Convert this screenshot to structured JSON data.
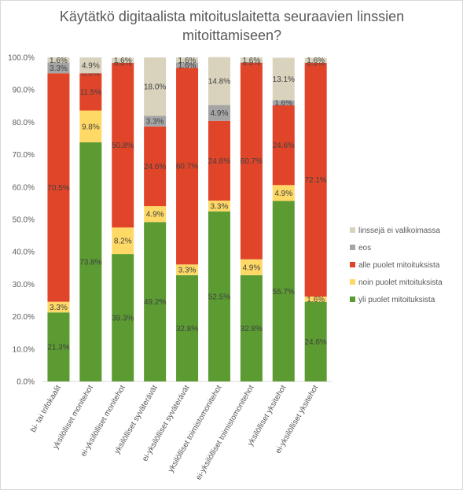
{
  "chart_data": {
    "type": "bar",
    "stacked": true,
    "title_lines": [
      "Käytätkö digitaalista mitoituslaitetta  seuraavien linssien",
      "mitoittamiseen?"
    ],
    "categories": [
      "bi- tai trifokaalit",
      "yksilölliset monitehot",
      "ei-yksilölliset monitehot",
      "yksilölliset syväterävät",
      "ei-yksilölliset syväterävät",
      "yksilölliset toimistomonitehot",
      "ei-yksilölliset toimistomonitehot",
      "yksilölliset yksitehot",
      "ei-yksilölliset yksitehot"
    ],
    "series": [
      {
        "name": "yli puolet mitoituksista",
        "color": "#5b9b32",
        "values": [
          21.3,
          73.8,
          39.3,
          49.2,
          32.8,
          52.5,
          32.8,
          55.7,
          24.6
        ]
      },
      {
        "name": "noin puolet mitoituksista",
        "color": "#ffd966",
        "values": [
          3.3,
          9.8,
          8.2,
          4.9,
          3.3,
          3.3,
          4.9,
          4.9,
          1.6
        ]
      },
      {
        "name": "alle puolet mitoituksista",
        "color": "#e0452a",
        "values": [
          70.5,
          11.5,
          50.8,
          24.6,
          60.7,
          24.6,
          60.7,
          24.6,
          72.1
        ]
      },
      {
        "name": "eos",
        "color": "#a5a5a5",
        "values": [
          3.3,
          0.0,
          0.0,
          3.3,
          1.6,
          4.9,
          0.0,
          1.6,
          0.0
        ]
      },
      {
        "name": "linssejä ei valikoimassa",
        "color": "#d9d3bd",
        "values": [
          1.6,
          4.9,
          1.6,
          18.0,
          1.6,
          14.8,
          1.6,
          13.1,
          1.6
        ]
      }
    ],
    "data_labels": [
      [
        "21.3%",
        "73.8%",
        "39.3%",
        "49.2%",
        "32.8%",
        "52.5%",
        "32.8%",
        "55.7%",
        "24.6%"
      ],
      [
        "3.3%",
        "9.8%",
        "8.2%",
        "4.9%",
        "3.3%",
        "3.3%",
        "4.9%",
        "4.9%",
        "1.6%"
      ],
      [
        "70.5%",
        "11.5%",
        "50.8%",
        "24.6%",
        "60.7%",
        "24.6%",
        "60.7%",
        "24.6%",
        "72.1%"
      ],
      [
        "3.3%",
        "0.0%",
        "0.0%",
        "3.3%",
        "1.6%",
        "4.9%",
        "0.0%",
        "1.6%",
        "0.0%"
      ],
      [
        "1.6%",
        "4.9%",
        "1.6%",
        "18.0%",
        "1.6%",
        "14.8%",
        "1.6%",
        "13.1%",
        "1.6%"
      ]
    ],
    "y_ticks": [
      "0.0%",
      "10.0%",
      "20.0%",
      "30.0%",
      "40.0%",
      "50.0%",
      "60.0%",
      "70.0%",
      "80.0%",
      "90.0%",
      "100.0%"
    ],
    "ylim": [
      0,
      100
    ],
    "grid": false,
    "legend_position": "right",
    "legend_order": [
      "linssejä ei valikoimassa",
      "eos",
      "alle puolet mitoituksista",
      "noin puolet mitoituksista",
      "yli puolet mitoituksista"
    ]
  }
}
